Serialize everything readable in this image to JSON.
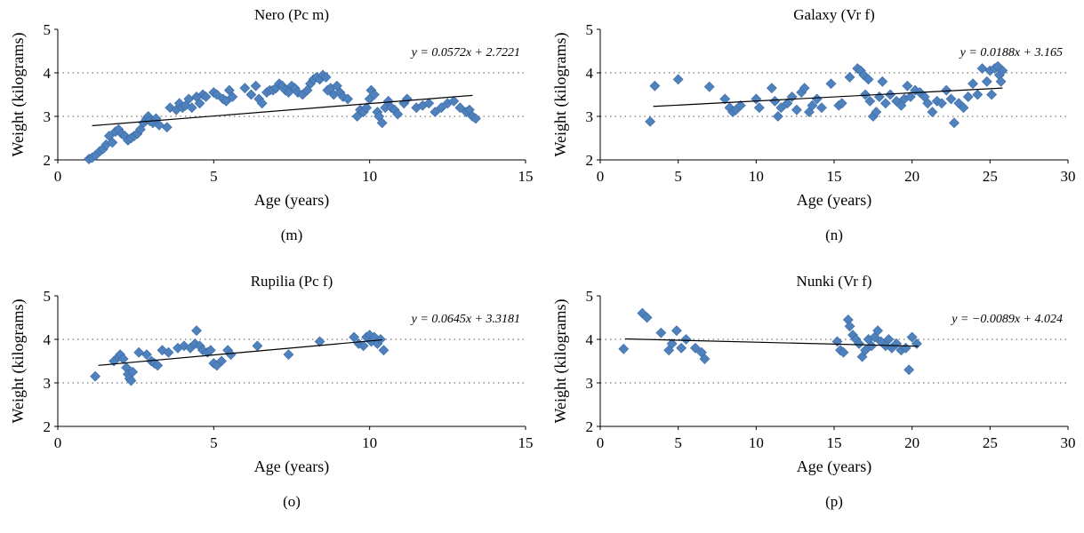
{
  "chart_data": [
    {
      "type": "scatter",
      "title": "Nero (Pc m)",
      "panel_label": "(m)",
      "xlabel": "Age (years)",
      "ylabel": "Weight (kilograms)",
      "xlim": [
        0,
        15
      ],
      "ylim": [
        2,
        5
      ],
      "xticks": [
        0,
        5,
        10,
        15
      ],
      "yticks": [
        2,
        3,
        4,
        5
      ],
      "grid": "dotted horizontal at 3 and 4",
      "marker_color": "#4F81BD",
      "equation": "y = 0.0572x + 2.7221",
      "trendline": {
        "slope": 0.0572,
        "intercept": 2.7221,
        "x_start": 1.1,
        "x_end": 13.3
      },
      "points": [
        [
          1.0,
          2.02
        ],
        [
          1.1,
          2.05
        ],
        [
          1.2,
          2.1
        ],
        [
          1.35,
          2.2
        ],
        [
          1.45,
          2.25
        ],
        [
          1.55,
          2.35
        ],
        [
          1.65,
          2.55
        ],
        [
          1.75,
          2.4
        ],
        [
          1.85,
          2.65
        ],
        [
          1.95,
          2.7
        ],
        [
          2.05,
          2.6
        ],
        [
          2.15,
          2.55
        ],
        [
          2.25,
          2.45
        ],
        [
          2.35,
          2.5
        ],
        [
          2.45,
          2.55
        ],
        [
          2.55,
          2.6
        ],
        [
          2.65,
          2.7
        ],
        [
          2.75,
          2.85
        ],
        [
          2.85,
          2.95
        ],
        [
          2.9,
          3.0
        ],
        [
          2.95,
          2.9
        ],
        [
          3.05,
          2.85
        ],
        [
          3.15,
          2.95
        ],
        [
          3.25,
          2.8
        ],
        [
          3.5,
          2.75
        ],
        [
          3.6,
          3.2
        ],
        [
          3.8,
          3.15
        ],
        [
          3.9,
          3.3
        ],
        [
          4.0,
          3.2
        ],
        [
          4.1,
          3.25
        ],
        [
          4.2,
          3.4
        ],
        [
          4.3,
          3.2
        ],
        [
          4.45,
          3.45
        ],
        [
          4.55,
          3.3
        ],
        [
          4.65,
          3.5
        ],
        [
          4.75,
          3.45
        ],
        [
          5.0,
          3.55
        ],
        [
          5.1,
          3.5
        ],
        [
          5.3,
          3.4
        ],
        [
          5.4,
          3.35
        ],
        [
          5.5,
          3.6
        ],
        [
          5.6,
          3.45
        ],
        [
          6.0,
          3.65
        ],
        [
          6.2,
          3.5
        ],
        [
          6.35,
          3.7
        ],
        [
          6.45,
          3.4
        ],
        [
          6.55,
          3.3
        ],
        [
          6.7,
          3.55
        ],
        [
          6.8,
          3.6
        ],
        [
          6.9,
          3.6
        ],
        [
          7.0,
          3.65
        ],
        [
          7.1,
          3.75
        ],
        [
          7.2,
          3.7
        ],
        [
          7.3,
          3.6
        ],
        [
          7.4,
          3.55
        ],
        [
          7.5,
          3.7
        ],
        [
          7.6,
          3.65
        ],
        [
          7.7,
          3.55
        ],
        [
          7.85,
          3.5
        ],
        [
          8.0,
          3.6
        ],
        [
          8.1,
          3.75
        ],
        [
          8.2,
          3.85
        ],
        [
          8.3,
          3.9
        ],
        [
          8.4,
          3.85
        ],
        [
          8.5,
          3.95
        ],
        [
          8.6,
          3.9
        ],
        [
          8.65,
          3.6
        ],
        [
          8.75,
          3.65
        ],
        [
          8.85,
          3.5
        ],
        [
          8.95,
          3.7
        ],
        [
          9.05,
          3.55
        ],
        [
          9.15,
          3.45
        ],
        [
          9.3,
          3.4
        ],
        [
          9.6,
          3.0
        ],
        [
          9.7,
          3.15
        ],
        [
          9.8,
          3.1
        ],
        [
          9.9,
          3.2
        ],
        [
          10.0,
          3.4
        ],
        [
          10.05,
          3.6
        ],
        [
          10.15,
          3.5
        ],
        [
          10.25,
          3.1
        ],
        [
          10.3,
          3.0
        ],
        [
          10.4,
          2.85
        ],
        [
          10.5,
          3.2
        ],
        [
          10.6,
          3.35
        ],
        [
          10.7,
          3.2
        ],
        [
          10.8,
          3.15
        ],
        [
          10.9,
          3.05
        ],
        [
          11.1,
          3.3
        ],
        [
          11.2,
          3.4
        ],
        [
          11.5,
          3.2
        ],
        [
          11.7,
          3.25
        ],
        [
          11.9,
          3.3
        ],
        [
          12.1,
          3.1
        ],
        [
          12.3,
          3.2
        ],
        [
          12.5,
          3.3
        ],
        [
          12.7,
          3.35
        ],
        [
          12.9,
          3.2
        ],
        [
          13.1,
          3.1
        ],
        [
          13.2,
          3.15
        ],
        [
          13.3,
          3.0
        ],
        [
          13.4,
          2.95
        ]
      ]
    },
    {
      "type": "scatter",
      "title": "Galaxy (Vr f)",
      "panel_label": "(n)",
      "xlabel": "Age (years)",
      "ylabel": "Weight (kilograms)",
      "xlim": [
        0,
        30
      ],
      "ylim": [
        2,
        5
      ],
      "xticks": [
        0,
        5,
        10,
        15,
        20,
        25,
        30
      ],
      "yticks": [
        2,
        3,
        4,
        5
      ],
      "grid": "dotted horizontal at 3 and 4",
      "marker_color": "#4F81BD",
      "equation": "y = 0.0188x + 3.165",
      "trendline": {
        "slope": 0.0188,
        "intercept": 3.165,
        "x_start": 3.4,
        "x_end": 25.8
      },
      "points": [
        [
          3.2,
          2.88
        ],
        [
          3.5,
          3.7
        ],
        [
          5.0,
          3.85
        ],
        [
          7.0,
          3.68
        ],
        [
          8.0,
          3.4
        ],
        [
          8.3,
          3.2
        ],
        [
          8.5,
          3.1
        ],
        [
          8.7,
          3.15
        ],
        [
          9.0,
          3.25
        ],
        [
          10.0,
          3.4
        ],
        [
          10.2,
          3.2
        ],
        [
          11.0,
          3.65
        ],
        [
          11.2,
          3.35
        ],
        [
          11.4,
          3.0
        ],
        [
          11.6,
          3.2
        ],
        [
          12.0,
          3.3
        ],
        [
          12.3,
          3.45
        ],
        [
          12.6,
          3.15
        ],
        [
          12.9,
          3.55
        ],
        [
          13.1,
          3.65
        ],
        [
          13.4,
          3.1
        ],
        [
          13.6,
          3.25
        ],
        [
          13.9,
          3.4
        ],
        [
          14.2,
          3.2
        ],
        [
          14.8,
          3.75
        ],
        [
          15.3,
          3.25
        ],
        [
          15.5,
          3.3
        ],
        [
          16.0,
          3.9
        ],
        [
          16.5,
          4.1
        ],
        [
          16.7,
          4.05
        ],
        [
          16.9,
          3.95
        ],
        [
          17.0,
          3.5
        ],
        [
          17.2,
          3.85
        ],
        [
          17.3,
          3.35
        ],
        [
          17.5,
          3.0
        ],
        [
          17.7,
          3.1
        ],
        [
          17.9,
          3.45
        ],
        [
          18.1,
          3.8
        ],
        [
          18.3,
          3.3
        ],
        [
          18.6,
          3.5
        ],
        [
          19.0,
          3.35
        ],
        [
          19.3,
          3.25
        ],
        [
          19.5,
          3.4
        ],
        [
          19.7,
          3.7
        ],
        [
          19.9,
          3.45
        ],
        [
          20.2,
          3.6
        ],
        [
          20.5,
          3.55
        ],
        [
          20.8,
          3.45
        ],
        [
          21.0,
          3.3
        ],
        [
          21.3,
          3.1
        ],
        [
          21.6,
          3.35
        ],
        [
          21.9,
          3.3
        ],
        [
          22.2,
          3.6
        ],
        [
          22.5,
          3.4
        ],
        [
          22.7,
          2.85
        ],
        [
          23.0,
          3.3
        ],
        [
          23.3,
          3.2
        ],
        [
          23.6,
          3.45
        ],
        [
          23.9,
          3.75
        ],
        [
          24.2,
          3.5
        ],
        [
          24.5,
          4.1
        ],
        [
          24.8,
          3.8
        ],
        [
          25.0,
          4.05
        ],
        [
          25.1,
          3.5
        ],
        [
          25.3,
          4.1
        ],
        [
          25.5,
          4.15
        ],
        [
          25.6,
          3.95
        ],
        [
          25.7,
          3.8
        ],
        [
          25.8,
          4.05
        ]
      ]
    },
    {
      "type": "scatter",
      "title": "Rupilia (Pc f)",
      "panel_label": "(o)",
      "xlabel": "Age (years)",
      "ylabel": "Weight (kilograms)",
      "xlim": [
        0,
        15
      ],
      "ylim": [
        2,
        5
      ],
      "xticks": [
        0,
        5,
        10,
        15
      ],
      "yticks": [
        2,
        3,
        4,
        5
      ],
      "grid": "dotted horizontal at 3 and 4",
      "marker_color": "#4F81BD",
      "equation": "y = 0.0645x + 3.3181",
      "trendline": {
        "slope": 0.0645,
        "intercept": 3.3181,
        "x_start": 1.3,
        "x_end": 10.4
      },
      "points": [
        [
          1.2,
          3.15
        ],
        [
          1.8,
          3.5
        ],
        [
          1.95,
          3.6
        ],
        [
          2.0,
          3.65
        ],
        [
          2.1,
          3.55
        ],
        [
          2.2,
          3.35
        ],
        [
          2.25,
          3.2
        ],
        [
          2.3,
          3.1
        ],
        [
          2.35,
          3.05
        ],
        [
          2.4,
          3.25
        ],
        [
          2.6,
          3.7
        ],
        [
          2.85,
          3.65
        ],
        [
          3.0,
          3.5
        ],
        [
          3.1,
          3.45
        ],
        [
          3.2,
          3.4
        ],
        [
          3.35,
          3.75
        ],
        [
          3.55,
          3.7
        ],
        [
          3.85,
          3.8
        ],
        [
          4.05,
          3.85
        ],
        [
          4.25,
          3.8
        ],
        [
          4.4,
          3.9
        ],
        [
          4.45,
          4.2
        ],
        [
          4.55,
          3.85
        ],
        [
          4.65,
          3.75
        ],
        [
          4.8,
          3.7
        ],
        [
          4.9,
          3.75
        ],
        [
          5.0,
          3.45
        ],
        [
          5.1,
          3.4
        ],
        [
          5.25,
          3.5
        ],
        [
          5.45,
          3.75
        ],
        [
          5.55,
          3.65
        ],
        [
          6.4,
          3.85
        ],
        [
          7.4,
          3.65
        ],
        [
          8.4,
          3.95
        ],
        [
          9.5,
          4.05
        ],
        [
          9.65,
          3.9
        ],
        [
          9.8,
          3.85
        ],
        [
          9.9,
          4.05
        ],
        [
          10.0,
          4.1
        ],
        [
          10.05,
          3.95
        ],
        [
          10.15,
          4.05
        ],
        [
          10.25,
          3.9
        ],
        [
          10.35,
          4.0
        ],
        [
          10.45,
          3.75
        ]
      ]
    },
    {
      "type": "scatter",
      "title": "Nunki (Vr f)",
      "panel_label": "(p)",
      "xlabel": "Age (years)",
      "ylabel": "Weight (kilograms)",
      "xlim": [
        0,
        30
      ],
      "ylim": [
        2,
        5
      ],
      "xticks": [
        0,
        5,
        10,
        15,
        20,
        25,
        30
      ],
      "yticks": [
        2,
        3,
        4,
        5
      ],
      "grid": "dotted horizontal at 3 and 4",
      "marker_color": "#4F81BD",
      "equation": "y = −0.0089x + 4.024",
      "trendline": {
        "slope": -0.0089,
        "intercept": 4.024,
        "x_start": 1.6,
        "x_end": 20.4
      },
      "points": [
        [
          1.5,
          3.78
        ],
        [
          2.7,
          4.6
        ],
        [
          3.0,
          4.5
        ],
        [
          3.9,
          4.15
        ],
        [
          4.4,
          3.75
        ],
        [
          4.6,
          3.9
        ],
        [
          4.9,
          4.2
        ],
        [
          5.2,
          3.8
        ],
        [
          5.5,
          4.0
        ],
        [
          6.1,
          3.8
        ],
        [
          6.5,
          3.7
        ],
        [
          6.7,
          3.55
        ],
        [
          15.2,
          3.95
        ],
        [
          15.4,
          3.75
        ],
        [
          15.6,
          3.7
        ],
        [
          15.9,
          4.45
        ],
        [
          16.0,
          4.3
        ],
        [
          16.2,
          4.1
        ],
        [
          16.4,
          4.0
        ],
        [
          16.6,
          3.9
        ],
        [
          16.8,
          3.6
        ],
        [
          17.0,
          3.75
        ],
        [
          17.2,
          4.0
        ],
        [
          17.4,
          3.85
        ],
        [
          17.6,
          4.05
        ],
        [
          17.8,
          4.2
        ],
        [
          18.0,
          3.95
        ],
        [
          18.3,
          3.85
        ],
        [
          18.5,
          4.0
        ],
        [
          18.7,
          3.8
        ],
        [
          19.0,
          3.9
        ],
        [
          19.3,
          3.75
        ],
        [
          19.6,
          3.8
        ],
        [
          19.8,
          3.3
        ],
        [
          20.0,
          4.05
        ],
        [
          20.3,
          3.9
        ]
      ]
    }
  ]
}
